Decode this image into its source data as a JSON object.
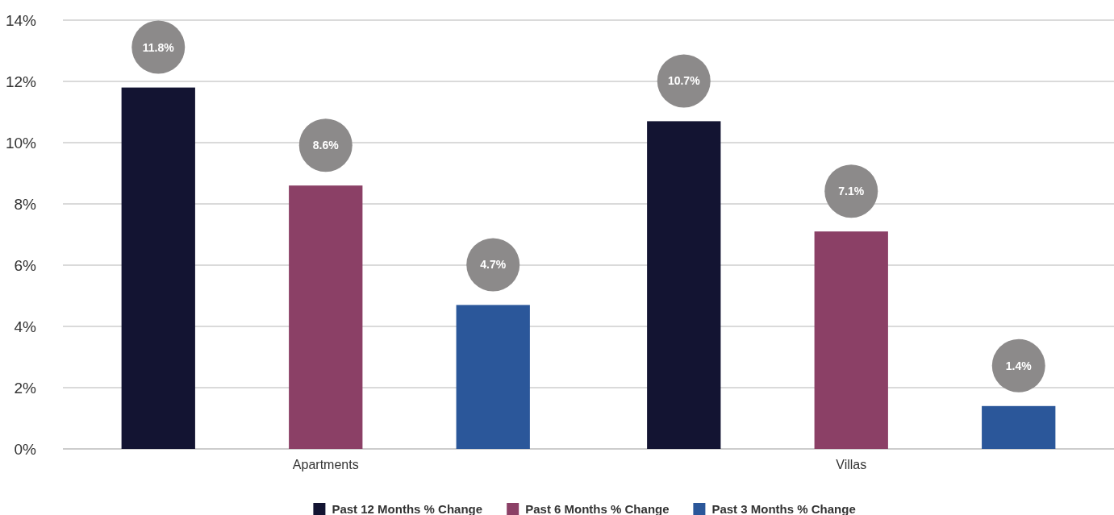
{
  "chart_data": {
    "type": "bar",
    "categories": [
      "Apartments",
      "Villas"
    ],
    "series": [
      {
        "name": "Past 12 Months % Change",
        "color": "#131432",
        "values": [
          11.8,
          10.7
        ],
        "value_labels": [
          "11.8%",
          "10.7%"
        ]
      },
      {
        "name": "Past 6 Months % Change",
        "color": "#8b4066",
        "values": [
          8.6,
          7.1
        ],
        "value_labels": [
          "8.6%",
          "7.1%"
        ]
      },
      {
        "name": "Past 3 Months % Change",
        "color": "#2b579a",
        "values": [
          4.7,
          1.4
        ],
        "value_labels": [
          "4.7%",
          "1.4%"
        ]
      }
    ],
    "ylim": [
      0,
      14
    ],
    "yticks": [
      {
        "value": 0,
        "label": "0%"
      },
      {
        "value": 2,
        "label": "2%"
      },
      {
        "value": 4,
        "label": "4%"
      },
      {
        "value": 6,
        "label": "6%"
      },
      {
        "value": 8,
        "label": "8%"
      },
      {
        "value": 10,
        "label": "10%"
      },
      {
        "value": 12,
        "label": "12%"
      },
      {
        "value": 14,
        "label": "14%"
      }
    ],
    "grid": "y",
    "legend": "bottom"
  }
}
